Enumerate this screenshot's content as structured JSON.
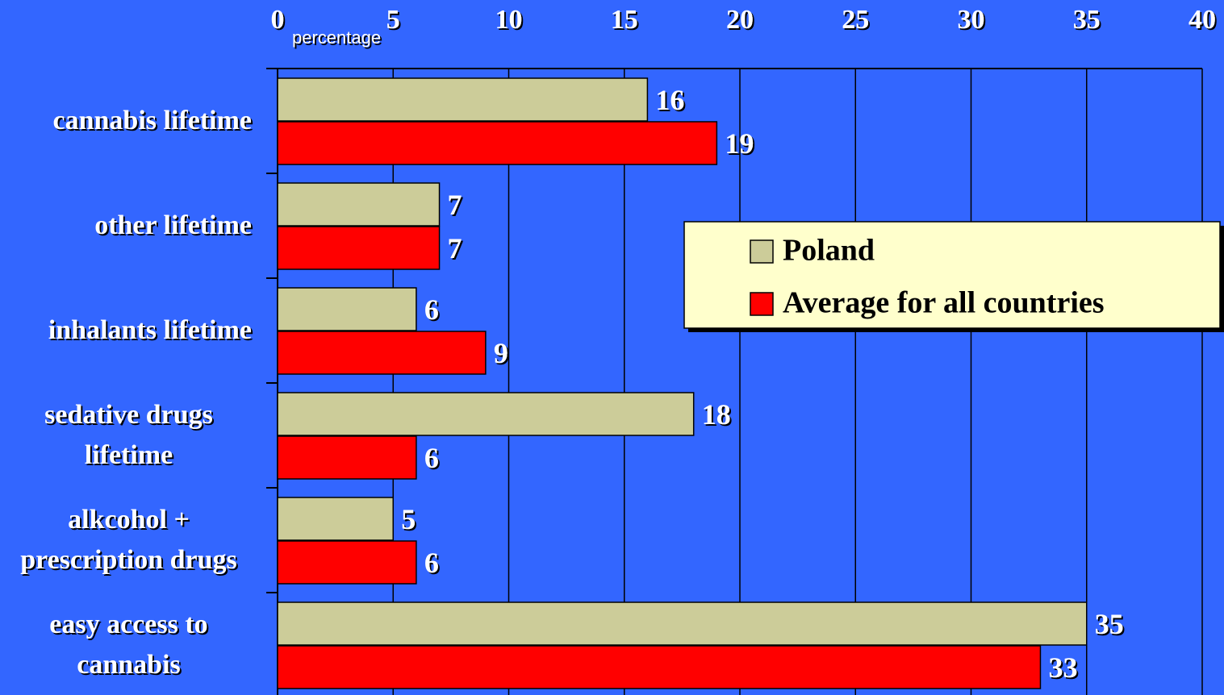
{
  "chart_data": {
    "type": "barh",
    "axis_label": "percentage",
    "categories": [
      "cannabis lifetime",
      "other lifetime",
      "inhalants lifetime",
      "sedative drugs lifetime",
      "alkcohol + prescription drugs",
      "easy access to cannabis"
    ],
    "series": [
      {
        "name": "Poland",
        "color": "#cccc99",
        "values": [
          16,
          7,
          6,
          18,
          5,
          35
        ]
      },
      {
        "name": "Average for all countries",
        "color": "#ff0000",
        "values": [
          19,
          7,
          9,
          6,
          6,
          33
        ]
      }
    ],
    "xlim": [
      0,
      40
    ],
    "xticks": [
      0,
      5,
      10,
      15,
      20,
      25,
      30,
      35,
      40
    ],
    "grid": true,
    "legend": "right"
  }
}
